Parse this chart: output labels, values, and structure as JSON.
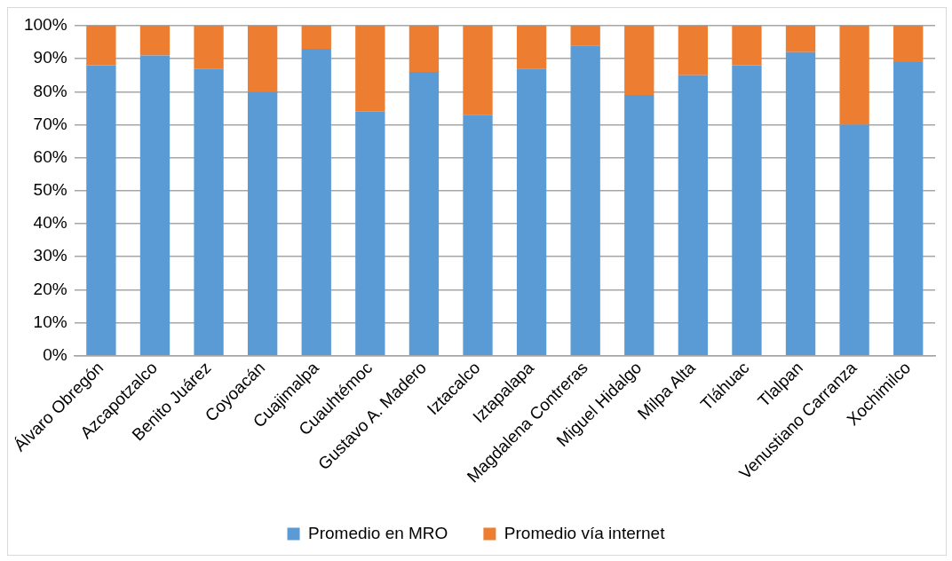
{
  "chart_data": {
    "type": "bar",
    "stacked": true,
    "categories": [
      "Álvaro Obregón",
      "Azcapotzalco",
      "Benito Juárez",
      "Coyoacán",
      "Cuajimalpa",
      "Cuauhtémoc",
      "Gustavo A. Madero",
      "Iztacalco",
      "Iztapalapa",
      "Magdalena Contreras",
      "Miguel Hidalgo",
      "Milpa Alta",
      "Tláhuac",
      "Tlalpan",
      "Venustiano Carranza",
      "Xochimilco"
    ],
    "series": [
      {
        "name": "Promedio en MRO",
        "color": "#5b9bd5",
        "values": [
          88,
          91,
          87,
          80,
          93,
          74,
          86,
          73,
          87,
          94,
          79,
          85,
          88,
          92,
          70,
          89
        ]
      },
      {
        "name": "Promedio vía internet",
        "color": "#ed7d31",
        "values": [
          12,
          9,
          13,
          20,
          7,
          26,
          14,
          27,
          13,
          6,
          21,
          15,
          12,
          8,
          30,
          11
        ]
      }
    ],
    "ylim": [
      0,
      100
    ],
    "yticks": [
      {
        "value": 0,
        "label": "0%"
      },
      {
        "value": 10,
        "label": "10%"
      },
      {
        "value": 20,
        "label": "20%"
      },
      {
        "value": 30,
        "label": "30%"
      },
      {
        "value": 40,
        "label": "40%"
      },
      {
        "value": 50,
        "label": "50%"
      },
      {
        "value": 60,
        "label": "60%"
      },
      {
        "value": 70,
        "label": "70%"
      },
      {
        "value": 80,
        "label": "80%"
      },
      {
        "value": 90,
        "label": "90%"
      },
      {
        "value": 100,
        "label": "100%"
      }
    ],
    "grid": "y",
    "legend": "bottom"
  }
}
